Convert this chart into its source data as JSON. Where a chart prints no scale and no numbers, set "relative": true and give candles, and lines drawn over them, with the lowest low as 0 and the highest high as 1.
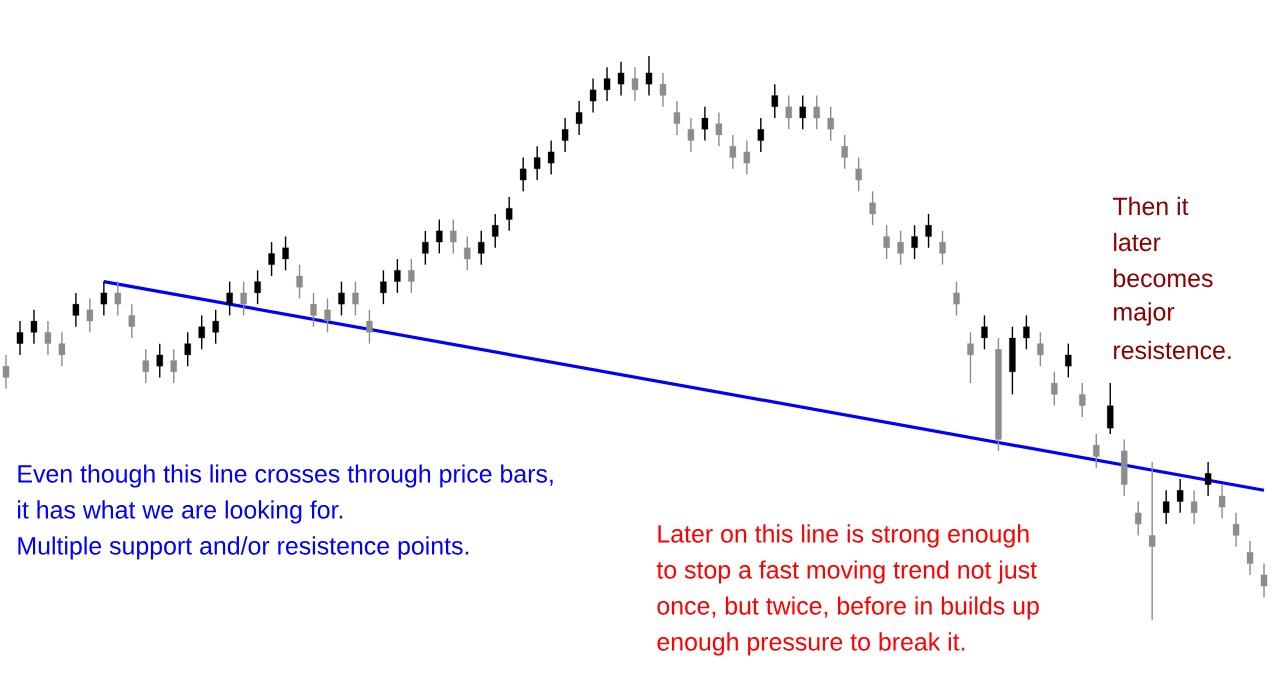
{
  "chart_data": {
    "type": "candlestick",
    "relative": true,
    "colors": [
      "#8c8c8c",
      "#000000",
      "#000000",
      "#8c8c8c",
      "#8c8c8c",
      "#000000",
      "#8c8c8c",
      "#000000",
      "#8c8c8c",
      "#8c8c8c",
      "#8c8c8c",
      "#000000",
      "#8c8c8c",
      "#000000",
      "#000000",
      "#000000",
      "#000000",
      "#8c8c8c",
      "#000000",
      "#000000",
      "#000000",
      "#8c8c8c",
      "#8c8c8c",
      "#8c8c8c",
      "#000000",
      "#8c8c8c",
      "#8c8c8c",
      "#000000",
      "#000000",
      "#8c8c8c",
      "#000000",
      "#000000",
      "#8c8c8c",
      "#8c8c8c",
      "#000000",
      "#000000",
      "#000000",
      "#000000",
      "#000000",
      "#000000",
      "#000000",
      "#000000",
      "#000000",
      "#000000",
      "#000000",
      "#8c8c8c",
      "#000000",
      "#8c8c8c",
      "#8c8c8c",
      "#8c8c8c",
      "#000000",
      "#8c8c8c",
      "#8c8c8c",
      "#8c8c8c",
      "#000000",
      "#000000",
      "#8c8c8c",
      "#000000",
      "#8c8c8c",
      "#8c8c8c",
      "#8c8c8c",
      "#8c8c8c",
      "#8c8c8c",
      "#8c8c8c",
      "#8c8c8c",
      "#000000",
      "#000000",
      "#8c8c8c",
      "#8c8c8c",
      "#8c8c8c",
      "#000000",
      "#8c8c8c",
      "#000000",
      "#000000",
      "#8c8c8c",
      "#8c8c8c",
      "#000000",
      "#8c8c8c",
      "#8c8c8c",
      "#000000",
      "#8c8c8c",
      "#8c8c8c",
      "#8c8c8c",
      "#000000",
      "#000000",
      "#8c8c8c",
      "#000000",
      "#8c8c8c",
      "#8c8c8c",
      "#8c8c8c",
      "#8c8c8c"
    ],
    "categories": [
      null,
      null,
      null,
      null,
      null,
      null,
      null,
      null,
      null,
      null,
      null,
      null,
      null,
      null,
      null,
      null,
      null,
      null,
      null,
      null,
      null,
      null,
      null,
      null,
      null,
      null,
      null,
      null,
      null,
      null,
      null,
      null,
      null,
      null,
      null,
      null,
      null,
      null,
      null,
      null,
      null,
      null,
      null,
      null,
      null,
      null,
      null,
      null,
      null,
      null,
      null,
      null,
      null,
      null,
      null,
      null,
      null,
      null,
      null,
      null,
      null,
      null,
      null,
      null,
      null,
      null,
      null,
      null,
      null,
      null,
      null,
      null,
      null,
      null,
      null,
      null,
      null,
      null,
      null,
      null,
      null,
      null,
      null,
      null,
      null,
      null,
      null,
      null,
      null,
      null,
      null
    ],
    "ohlc": [
      [
        0.45,
        0.47,
        0.41,
        0.43
      ],
      [
        0.49,
        0.53,
        0.47,
        0.51
      ],
      [
        0.51,
        0.55,
        0.49,
        0.53
      ],
      [
        0.51,
        0.53,
        0.47,
        0.49
      ],
      [
        0.49,
        0.51,
        0.45,
        0.47
      ],
      [
        0.54,
        0.58,
        0.52,
        0.56
      ],
      [
        0.55,
        0.57,
        0.51,
        0.53
      ],
      [
        0.56,
        0.6,
        0.54,
        0.58
      ],
      [
        0.58,
        0.6,
        0.54,
        0.56
      ],
      [
        0.54,
        0.56,
        0.5,
        0.52
      ],
      [
        0.46,
        0.48,
        0.42,
        0.44
      ],
      [
        0.45,
        0.49,
        0.43,
        0.47
      ],
      [
        0.46,
        0.48,
        0.42,
        0.44
      ],
      [
        0.47,
        0.51,
        0.45,
        0.49
      ],
      [
        0.5,
        0.54,
        0.48,
        0.52
      ],
      [
        0.51,
        0.55,
        0.49,
        0.53
      ],
      [
        0.56,
        0.6,
        0.54,
        0.58
      ],
      [
        0.58,
        0.6,
        0.54,
        0.56
      ],
      [
        0.58,
        0.62,
        0.56,
        0.6
      ],
      [
        0.63,
        0.67,
        0.61,
        0.65
      ],
      [
        0.64,
        0.68,
        0.62,
        0.66
      ],
      [
        0.61,
        0.63,
        0.57,
        0.59
      ],
      [
        0.56,
        0.58,
        0.52,
        0.54
      ],
      [
        0.55,
        0.57,
        0.51,
        0.53
      ],
      [
        0.56,
        0.6,
        0.54,
        0.58
      ],
      [
        0.58,
        0.6,
        0.54,
        0.56
      ],
      [
        0.53,
        0.55,
        0.49,
        0.51
      ],
      [
        0.58,
        0.62,
        0.56,
        0.6
      ],
      [
        0.6,
        0.64,
        0.58,
        0.62
      ],
      [
        0.62,
        0.64,
        0.58,
        0.6
      ],
      [
        0.65,
        0.69,
        0.63,
        0.67
      ],
      [
        0.67,
        0.71,
        0.65,
        0.69
      ],
      [
        0.69,
        0.71,
        0.65,
        0.67
      ],
      [
        0.66,
        0.68,
        0.62,
        0.64
      ],
      [
        0.65,
        0.69,
        0.63,
        0.67
      ],
      [
        0.68,
        0.72,
        0.66,
        0.7
      ],
      [
        0.71,
        0.75,
        0.69,
        0.73
      ],
      [
        0.78,
        0.82,
        0.76,
        0.8
      ],
      [
        0.8,
        0.84,
        0.78,
        0.82
      ],
      [
        0.81,
        0.85,
        0.79,
        0.83
      ],
      [
        0.85,
        0.89,
        0.83,
        0.87
      ],
      [
        0.88,
        0.92,
        0.86,
        0.9
      ],
      [
        0.92,
        0.96,
        0.9,
        0.94
      ],
      [
        0.94,
        0.98,
        0.92,
        0.96
      ],
      [
        0.95,
        0.99,
        0.93,
        0.97
      ],
      [
        0.96,
        0.98,
        0.92,
        0.94
      ],
      [
        0.95,
        1.0,
        0.93,
        0.97
      ],
      [
        0.95,
        0.97,
        0.91,
        0.93
      ],
      [
        0.9,
        0.92,
        0.86,
        0.88
      ],
      [
        0.87,
        0.89,
        0.83,
        0.85
      ],
      [
        0.87,
        0.91,
        0.85,
        0.89
      ],
      [
        0.88,
        0.9,
        0.84,
        0.86
      ],
      [
        0.84,
        0.86,
        0.8,
        0.82
      ],
      [
        0.83,
        0.85,
        0.79,
        0.81
      ],
      [
        0.85,
        0.89,
        0.83,
        0.87
      ],
      [
        0.91,
        0.95,
        0.89,
        0.93
      ],
      [
        0.91,
        0.93,
        0.87,
        0.89
      ],
      [
        0.89,
        0.93,
        0.87,
        0.91
      ],
      [
        0.91,
        0.93,
        0.87,
        0.89
      ],
      [
        0.89,
        0.91,
        0.85,
        0.87
      ],
      [
        0.84,
        0.86,
        0.8,
        0.82
      ],
      [
        0.8,
        0.82,
        0.76,
        0.78
      ],
      [
        0.74,
        0.76,
        0.7,
        0.72
      ],
      [
        0.68,
        0.7,
        0.64,
        0.66
      ],
      [
        0.67,
        0.69,
        0.63,
        0.65
      ],
      [
        0.66,
        0.7,
        0.64,
        0.68
      ],
      [
        0.68,
        0.72,
        0.66,
        0.7
      ],
      [
        0.67,
        0.69,
        0.63,
        0.65
      ],
      [
        0.58,
        0.6,
        0.54,
        0.56
      ],
      [
        0.49,
        0.51,
        0.42,
        0.47
      ],
      [
        0.5,
        0.54,
        0.48,
        0.52
      ],
      [
        0.48,
        0.5,
        0.3,
        0.32
      ],
      [
        0.44,
        0.52,
        0.4,
        0.5
      ],
      [
        0.5,
        0.54,
        0.48,
        0.52
      ],
      [
        0.49,
        0.51,
        0.45,
        0.47
      ],
      [
        0.42,
        0.44,
        0.38,
        0.4
      ],
      [
        0.45,
        0.49,
        0.43,
        0.47
      ],
      [
        0.4,
        0.42,
        0.36,
        0.38
      ],
      [
        0.31,
        0.33,
        0.27,
        0.29
      ],
      [
        0.34,
        0.42,
        0.33,
        0.38
      ],
      [
        0.3,
        0.32,
        0.22,
        0.24
      ],
      [
        0.19,
        0.21,
        0.15,
        0.17
      ],
      [
        0.15,
        0.28,
        0.0,
        0.13
      ],
      [
        0.19,
        0.23,
        0.17,
        0.21
      ],
      [
        0.21,
        0.25,
        0.19,
        0.23
      ],
      [
        0.21,
        0.23,
        0.17,
        0.19
      ],
      [
        0.24,
        0.28,
        0.22,
        0.26
      ],
      [
        0.22,
        0.24,
        0.18,
        0.2
      ],
      [
        0.17,
        0.19,
        0.13,
        0.15
      ],
      [
        0.12,
        0.14,
        0.08,
        0.1
      ],
      [
        0.08,
        0.1,
        0.04,
        0.06
      ]
    ],
    "series": [
      {
        "type": "line",
        "color": "#0000ff",
        "values": [
          null,
          null,
          null,
          null,
          null,
          null,
          null,
          0.6,
          null,
          null,
          null,
          null,
          null,
          null,
          null,
          null,
          null,
          null,
          null,
          null,
          null,
          null,
          null,
          null,
          null,
          null,
          null,
          null,
          null,
          null,
          null,
          null,
          null,
          null,
          null,
          null,
          null,
          null,
          null,
          null,
          null,
          null,
          null,
          null,
          null,
          null,
          null,
          null,
          null,
          null,
          null,
          null,
          null,
          null,
          null,
          null,
          null,
          null,
          null,
          null,
          null,
          null,
          null,
          null,
          null,
          null,
          null,
          null,
          null,
          null,
          null,
          null,
          null,
          null,
          null,
          null,
          null,
          null,
          null,
          null,
          null,
          null,
          null,
          null,
          null,
          null,
          null,
          null,
          null,
          null,
          0.23
        ]
      }
    ],
    "annotations": [
      "Even though this line crosses through price bars,",
      "it has what we are looking for.",
      "Multiple support and/or resistence points.",
      "Later on this line is strong enough",
      "to stop a fast moving trend not just",
      "once, but twice, before in builds up",
      "enough pressure to break it.",
      "Then it",
      "later",
      "becomes",
      "major",
      "resistence."
    ]
  }
}
